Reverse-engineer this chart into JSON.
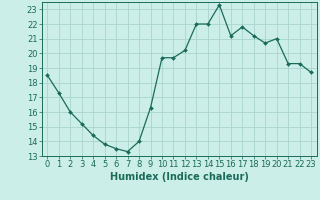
{
  "x": [
    0,
    1,
    2,
    3,
    4,
    5,
    6,
    7,
    8,
    9,
    10,
    11,
    12,
    13,
    14,
    15,
    16,
    17,
    18,
    19,
    20,
    21,
    22,
    23
  ],
  "y": [
    18.5,
    17.3,
    16.0,
    15.2,
    14.4,
    13.8,
    13.5,
    13.3,
    14.0,
    16.3,
    19.7,
    19.7,
    20.2,
    22.0,
    22.0,
    23.3,
    21.2,
    21.8,
    21.2,
    20.7,
    21.0,
    19.3,
    19.3,
    18.7
  ],
  "line_color": "#1a6b5a",
  "marker": "D",
  "marker_size": 2.0,
  "bg_color": "#cceee8",
  "grid_color": "#aad4ce",
  "xlabel": "Humidex (Indice chaleur)",
  "xlim": [
    -0.5,
    23.5
  ],
  "ylim": [
    13,
    23.5
  ],
  "yticks": [
    13,
    14,
    15,
    16,
    17,
    18,
    19,
    20,
    21,
    22,
    23
  ],
  "font_size": 6,
  "xlabel_fontsize": 7
}
